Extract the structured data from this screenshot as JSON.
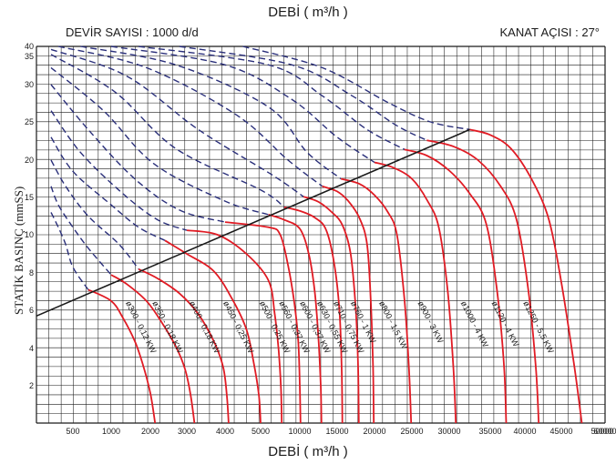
{
  "chart_data": {
    "type": "line",
    "title": "DEBİ  ( m³/h )",
    "xlabel": "DEBİ  ( m³/h )",
    "ylabel": "STATİK BASINÇ  (mmSS)",
    "notes": {
      "left": "DEVİR SAYISI : 1000 d/d",
      "right": "KANAT AÇISI : 27°"
    },
    "x_ticks": [
      500,
      1000,
      2000,
      3000,
      4000,
      5000,
      10000,
      15000,
      20000,
      25000,
      30000,
      35000,
      40000,
      45000,
      50000,
      60000
    ],
    "y_ticks": [
      2,
      4,
      6,
      8,
      10,
      15,
      20,
      25,
      30,
      35,
      40
    ],
    "grid": true,
    "colors": {
      "curve": "#e01b24",
      "dashed": "#2a2f7a",
      "line": "#1a1a1a",
      "grid": "#1a1a1a"
    },
    "operating_line": {
      "from": {
        "x": 0,
        "y": 5.7
      },
      "to": {
        "x": 32500,
        "y": 24
      }
    },
    "series": [
      {
        "name": "ø300 - 0,12 KW",
        "points": [
          [
            700,
            7.1
          ],
          [
            1000,
            6.5
          ],
          [
            1300,
            5.6
          ],
          [
            1600,
            4.4
          ],
          [
            1800,
            3.2
          ],
          [
            2000,
            1.6
          ],
          [
            2130,
            0
          ]
        ]
      },
      {
        "name": "ø350 - 0,18 KW",
        "points": [
          [
            1000,
            7.9
          ],
          [
            1400,
            7.4
          ],
          [
            1900,
            6.5
          ],
          [
            2300,
            5.4
          ],
          [
            2700,
            4.1
          ],
          [
            2950,
            2.9
          ],
          [
            3100,
            1.5
          ],
          [
            3200,
            0
          ]
        ]
      },
      {
        "name": "ø400 - 0,18 KW",
        "points": [
          [
            1700,
            8.2
          ],
          [
            2200,
            7.7
          ],
          [
            2800,
            6.9
          ],
          [
            3300,
            5.8
          ],
          [
            3700,
            4.4
          ],
          [
            3950,
            3.0
          ],
          [
            4050,
            1.5
          ],
          [
            4100,
            0
          ]
        ]
      },
      {
        "name": "ø450 - 0,25 KW",
        "points": [
          [
            2400,
            9.7
          ],
          [
            3000,
            9.0
          ],
          [
            3700,
            8.1
          ],
          [
            4200,
            6.6
          ],
          [
            4600,
            5.0
          ],
          [
            4800,
            3.3
          ],
          [
            4950,
            1.5
          ],
          [
            5000,
            0
          ]
        ]
      },
      {
        "name": "ø500 - 0,25 KW",
        "points": [
          [
            3000,
            10.6
          ],
          [
            3800,
            10.0
          ],
          [
            4600,
            9.0
          ],
          [
            6000,
            7.6
          ],
          [
            6800,
            5.8
          ],
          [
            7300,
            3.9
          ],
          [
            7600,
            1.8
          ],
          [
            7700,
            0
          ]
        ]
      },
      {
        "name": "ø560 - 0,37 KW",
        "points": [
          [
            4000,
            11.7
          ],
          [
            6000,
            11.0
          ],
          [
            7500,
            10.0
          ],
          [
            8500,
            8.4
          ],
          [
            9300,
            6.4
          ],
          [
            9800,
            4.4
          ],
          [
            10000,
            2.0
          ],
          [
            10100,
            0
          ]
        ]
      },
      {
        "name": "ø600 - 0,37 KW",
        "points": [
          [
            6000,
            12.7
          ],
          [
            8000,
            12.0
          ],
          [
            10000,
            10.8
          ],
          [
            11200,
            9.0
          ],
          [
            12000,
            7.0
          ],
          [
            12500,
            4.5
          ],
          [
            12800,
            2.0
          ],
          [
            12900,
            0
          ]
        ]
      },
      {
        "name": "ø630 - 0,55 KW",
        "points": [
          [
            8000,
            13.7
          ],
          [
            10000,
            13.2
          ],
          [
            12000,
            12.3
          ],
          [
            13500,
            10.7
          ],
          [
            14600,
            8.5
          ],
          [
            15300,
            6.0
          ],
          [
            15600,
            3.0
          ],
          [
            15700,
            0
          ]
        ]
      },
      {
        "name": "ø710 - 0,75 KW",
        "points": [
          [
            10500,
            15.1
          ],
          [
            12500,
            14.4
          ],
          [
            14300,
            13.0
          ],
          [
            15700,
            11.3
          ],
          [
            16800,
            9.0
          ],
          [
            17500,
            6.0
          ],
          [
            17800,
            3.0
          ],
          [
            17900,
            0
          ]
        ]
      },
      {
        "name": "ø760 - 1 KW",
        "points": [
          [
            13000,
            16.5
          ],
          [
            15000,
            15.8
          ],
          [
            16500,
            14.5
          ],
          [
            18000,
            12.2
          ],
          [
            19000,
            9.5
          ],
          [
            19500,
            6.5
          ],
          [
            19800,
            3.0
          ],
          [
            19900,
            0
          ]
        ]
      },
      {
        "name": "ø800 - 1,5 KW",
        "points": [
          [
            15500,
            17.5
          ],
          [
            18000,
            16.8
          ],
          [
            20000,
            15.3
          ],
          [
            21800,
            13.0
          ],
          [
            23000,
            10.0
          ],
          [
            24000,
            6.6
          ],
          [
            24600,
            3.0
          ],
          [
            24900,
            0
          ]
        ]
      },
      {
        "name": "ø900 - 3 KW",
        "points": [
          [
            20000,
            19.7
          ],
          [
            22500,
            19.0
          ],
          [
            25000,
            17.5
          ],
          [
            27000,
            14.7
          ],
          [
            28600,
            11.0
          ],
          [
            29800,
            7.0
          ],
          [
            30500,
            3.0
          ],
          [
            30800,
            0
          ]
        ]
      },
      {
        "name": "ø1000 - 4 KW",
        "points": [
          [
            24000,
            21.4
          ],
          [
            27000,
            20.6
          ],
          [
            30000,
            18.6
          ],
          [
            32500,
            15.5
          ],
          [
            34500,
            11.5
          ],
          [
            36000,
            7.0
          ],
          [
            37000,
            3.0
          ],
          [
            37300,
            0
          ]
        ]
      },
      {
        "name": "ø1120 - 4 KW",
        "points": [
          [
            27000,
            22.6
          ],
          [
            30500,
            21.8
          ],
          [
            33500,
            20.0
          ],
          [
            36500,
            16.5
          ],
          [
            38800,
            12.0
          ],
          [
            40500,
            7.0
          ],
          [
            41500,
            3.0
          ],
          [
            41900,
            0
          ]
        ]
      },
      {
        "name": "ø1250 - 5,5 KW",
        "points": [
          [
            32500,
            24.0
          ],
          [
            35000,
            23.3
          ],
          [
            38000,
            21.5
          ],
          [
            41000,
            17.3
          ],
          [
            43300,
            12.0
          ],
          [
            45000,
            7.5
          ],
          [
            46600,
            3.0
          ],
          [
            47500,
            0
          ]
        ]
      }
    ],
    "dashed_series": [
      [
        [
          200,
          13.0
        ],
        [
          300,
          11.0
        ],
        [
          400,
          9.5
        ],
        [
          500,
          8.3
        ],
        [
          700,
          7.1
        ]
      ],
      [
        [
          200,
          16.5
        ],
        [
          300,
          14.0
        ],
        [
          500,
          11.0
        ],
        [
          700,
          9.3
        ],
        [
          1000,
          7.9
        ]
      ],
      [
        [
          200,
          20.0
        ],
        [
          400,
          16.5
        ],
        [
          700,
          12.5
        ],
        [
          1200,
          9.5
        ],
        [
          1700,
          8.2
        ]
      ],
      [
        [
          200,
          23.0
        ],
        [
          500,
          18.5
        ],
        [
          1000,
          14.0
        ],
        [
          1700,
          11.0
        ],
        [
          2400,
          9.7
        ]
      ],
      [
        [
          200,
          26.5
        ],
        [
          600,
          21.0
        ],
        [
          1300,
          15.5
        ],
        [
          2200,
          12.0
        ],
        [
          3000,
          10.6
        ]
      ],
      [
        [
          200,
          30.0
        ],
        [
          700,
          24.0
        ],
        [
          1600,
          17.5
        ],
        [
          2800,
          13.3
        ],
        [
          4000,
          11.7
        ]
      ],
      [
        [
          200,
          33.0
        ],
        [
          900,
          26.5
        ],
        [
          2100,
          19.5
        ],
        [
          4000,
          14.5
        ],
        [
          6000,
          12.7
        ]
      ],
      [
        [
          200,
          36.0
        ],
        [
          1100,
          29.0
        ],
        [
          2700,
          21.5
        ],
        [
          5000,
          16.0
        ],
        [
          8000,
          13.7
        ]
      ],
      [
        [
          200,
          38.5
        ],
        [
          1400,
          31.5
        ],
        [
          3300,
          24.0
        ],
        [
          6500,
          18.0
        ],
        [
          10500,
          15.1
        ]
      ],
      [
        [
          300,
          40.0
        ],
        [
          1900,
          33.0
        ],
        [
          4300,
          26.0
        ],
        [
          8500,
          20.0
        ],
        [
          13000,
          16.5
        ]
      ],
      [
        [
          600,
          40.0
        ],
        [
          2700,
          33.5
        ],
        [
          6000,
          27.0
        ],
        [
          11000,
          21.0
        ],
        [
          15500,
          17.5
        ]
      ],
      [
        [
          1000,
          40.0
        ],
        [
          4000,
          33.5
        ],
        [
          9000,
          28.0
        ],
        [
          15000,
          23.0
        ],
        [
          20000,
          19.7
        ]
      ],
      [
        [
          1700,
          40.0
        ],
        [
          6000,
          33.5
        ],
        [
          13000,
          28.5
        ],
        [
          19000,
          24.0
        ],
        [
          24000,
          21.4
        ]
      ],
      [
        [
          2800,
          40.0
        ],
        [
          9000,
          33.5
        ],
        [
          17000,
          28.5
        ],
        [
          23000,
          24.5
        ],
        [
          27000,
          22.6
        ]
      ],
      [
        [
          4500,
          40.0
        ],
        [
          13000,
          33.0
        ],
        [
          22000,
          27.5
        ],
        [
          27500,
          25.0
        ],
        [
          32500,
          24.0
        ]
      ]
    ]
  }
}
